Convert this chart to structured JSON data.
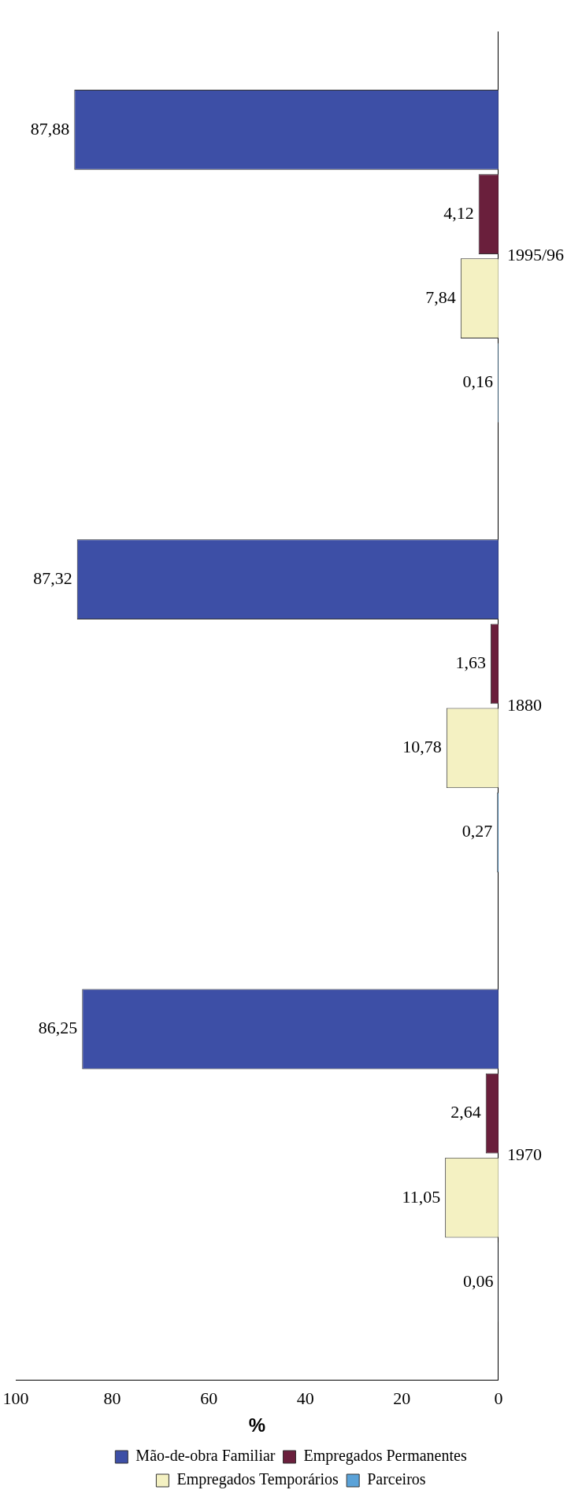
{
  "chart_data": {
    "type": "bar",
    "orientation": "horizontal",
    "categories": [
      "1995/96",
      "1880",
      "1970"
    ],
    "series": [
      {
        "name": "Mão-de-obra Familiar",
        "color": "#3d4fa6",
        "values": [
          87.88,
          87.32,
          86.25
        ],
        "value_labels": [
          "87,88",
          "87,32",
          "86,25"
        ]
      },
      {
        "name": "Empregados Permanentes",
        "color": "#6a1f3c",
        "values": [
          4.12,
          1.63,
          2.64
        ],
        "value_labels": [
          "4,12",
          "1,63",
          "2,64"
        ]
      },
      {
        "name": "Empregados Temporários",
        "color": "#f4f1c2",
        "values": [
          7.84,
          10.78,
          11.05
        ],
        "value_labels": [
          "7,84",
          "10,78",
          "11,05"
        ]
      },
      {
        "name": "Parceiros",
        "color": "#5aa2d8",
        "values": [
          0.16,
          0.27,
          0.06
        ],
        "value_labels": [
          "0,16",
          "0,27",
          "0,06"
        ]
      }
    ],
    "xlabel": "%",
    "xlim": [
      100,
      0
    ],
    "xticks": [
      0,
      20,
      40,
      60,
      80,
      100
    ],
    "grid": false,
    "legend": "bottom"
  }
}
